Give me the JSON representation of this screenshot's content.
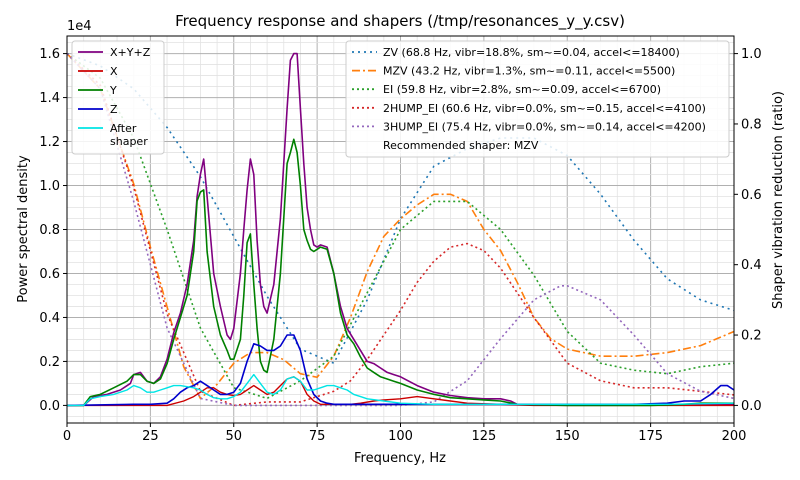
{
  "chart_data": {
    "type": "line",
    "title": "Frequency response and shapers (/tmp/resonances_y_y.csv)",
    "xlabel": "Frequency, Hz",
    "ylabel_left": "Power spectral density",
    "ylabel_right": "Shaper vibration reduction (ratio)",
    "xlim": [
      0,
      200
    ],
    "ylim_left": [
      -0.08,
      1.68
    ],
    "ylim_right": [
      -0.05,
      1.05
    ],
    "left_scale_label": "1e4",
    "xticks": [
      0,
      25,
      50,
      75,
      100,
      125,
      150,
      175,
      200
    ],
    "yticks_left": [
      0.0,
      0.2,
      0.4,
      0.6,
      0.8,
      1.0,
      1.2,
      1.4,
      1.6
    ],
    "yticks_right": [
      0.0,
      0.2,
      0.4,
      0.6,
      0.8,
      1.0
    ],
    "grid": true,
    "legend_left": "top-left",
    "legend_right": "top-right",
    "psd_series": [
      {
        "name": "X+Y+Z",
        "color": "#800080",
        "width": 1.6,
        "x": [
          0,
          5,
          8,
          12,
          16,
          19,
          20,
          22,
          24,
          26,
          28,
          30,
          32,
          34,
          36,
          38,
          39,
          40,
          41,
          42,
          44,
          46,
          48,
          49,
          50,
          52,
          53,
          54,
          55,
          56,
          57,
          58,
          59,
          60,
          62,
          64,
          66,
          67,
          68,
          69,
          70,
          71,
          72,
          73,
          74,
          75,
          76,
          78,
          80,
          82,
          84,
          86,
          88,
          90,
          92,
          94,
          96,
          98,
          100,
          105,
          110,
          115,
          120,
          125,
          130,
          133,
          135,
          150,
          175,
          200
        ],
        "y": [
          0.0,
          0.0,
          0.04,
          0.05,
          0.07,
          0.1,
          0.14,
          0.15,
          0.11,
          0.1,
          0.13,
          0.21,
          0.33,
          0.42,
          0.55,
          0.75,
          0.95,
          1.05,
          1.12,
          0.95,
          0.6,
          0.45,
          0.32,
          0.3,
          0.35,
          0.6,
          0.8,
          0.98,
          1.12,
          1.05,
          0.75,
          0.55,
          0.45,
          0.42,
          0.55,
          0.85,
          1.35,
          1.57,
          1.6,
          1.6,
          1.35,
          1.1,
          0.9,
          0.8,
          0.73,
          0.72,
          0.73,
          0.72,
          0.6,
          0.45,
          0.35,
          0.3,
          0.25,
          0.2,
          0.19,
          0.17,
          0.15,
          0.14,
          0.13,
          0.09,
          0.06,
          0.045,
          0.035,
          0.03,
          0.03,
          0.02,
          0.005,
          0.005,
          0.005,
          0.005
        ]
      },
      {
        "name": "X",
        "color": "#cc0000",
        "width": 1.4,
        "x": [
          0,
          30,
          35,
          38,
          40,
          42,
          44,
          46,
          48,
          50,
          52,
          54,
          56,
          58,
          60,
          62,
          64,
          66,
          68,
          70,
          72,
          74,
          76,
          80,
          85,
          88,
          92,
          95,
          100,
          105,
          110,
          115,
          120,
          130,
          140,
          160,
          180,
          200
        ],
        "y": [
          0.0,
          0.0,
          0.02,
          0.04,
          0.06,
          0.08,
          0.08,
          0.06,
          0.05,
          0.045,
          0.05,
          0.07,
          0.09,
          0.07,
          0.05,
          0.06,
          0.09,
          0.12,
          0.13,
          0.11,
          0.05,
          0.02,
          0.005,
          0.005,
          0.005,
          0.01,
          0.02,
          0.025,
          0.03,
          0.04,
          0.03,
          0.02,
          0.01,
          0.005,
          0.0,
          0.0,
          0.0,
          0.0
        ]
      },
      {
        "name": "Y",
        "color": "#008000",
        "width": 1.6,
        "x": [
          0,
          5,
          7,
          10,
          14,
          18,
          20,
          22,
          24,
          26,
          28,
          30,
          32,
          34,
          36,
          38,
          39,
          40,
          41,
          42,
          44,
          46,
          48,
          49,
          50,
          52,
          53,
          54,
          55,
          56,
          57,
          58,
          59,
          60,
          62,
          64,
          66,
          67,
          68,
          69,
          70,
          71,
          72,
          73,
          74,
          75,
          76,
          78,
          80,
          82,
          84,
          86,
          88,
          90,
          92,
          94,
          96,
          98,
          100,
          105,
          110,
          115,
          120,
          125,
          130,
          135,
          150,
          175,
          185,
          190,
          200
        ],
        "y": [
          0.0,
          0.0,
          0.04,
          0.05,
          0.08,
          0.11,
          0.14,
          0.14,
          0.11,
          0.1,
          0.12,
          0.19,
          0.3,
          0.4,
          0.5,
          0.7,
          0.93,
          0.97,
          0.98,
          0.7,
          0.45,
          0.32,
          0.25,
          0.21,
          0.21,
          0.3,
          0.5,
          0.74,
          0.78,
          0.55,
          0.35,
          0.2,
          0.16,
          0.15,
          0.3,
          0.6,
          1.1,
          1.15,
          1.21,
          1.15,
          1.0,
          0.8,
          0.75,
          0.71,
          0.7,
          0.71,
          0.72,
          0.71,
          0.6,
          0.42,
          0.32,
          0.28,
          0.22,
          0.17,
          0.15,
          0.13,
          0.12,
          0.11,
          0.1,
          0.07,
          0.05,
          0.035,
          0.03,
          0.025,
          0.02,
          0.005,
          0.0,
          0.0,
          0.005,
          0.01,
          0.01
        ]
      },
      {
        "name": "Z",
        "color": "#0000cc",
        "width": 1.6,
        "x": [
          0,
          20,
          25,
          30,
          32,
          34,
          36,
          38,
          40,
          42,
          44,
          46,
          48,
          50,
          52,
          54,
          56,
          58,
          60,
          62,
          64,
          66,
          68,
          70,
          72,
          74,
          76,
          78,
          80,
          100,
          130,
          150,
          170,
          180,
          185,
          190,
          193,
          196,
          198,
          200
        ],
        "y": [
          0.0,
          0.005,
          0.005,
          0.01,
          0.03,
          0.06,
          0.08,
          0.09,
          0.11,
          0.09,
          0.07,
          0.05,
          0.05,
          0.06,
          0.1,
          0.2,
          0.28,
          0.27,
          0.25,
          0.25,
          0.27,
          0.32,
          0.32,
          0.25,
          0.12,
          0.05,
          0.02,
          0.01,
          0.005,
          0.005,
          0.005,
          0.005,
          0.005,
          0.01,
          0.02,
          0.02,
          0.05,
          0.09,
          0.09,
          0.07
        ]
      },
      {
        "name": "After\nshaper",
        "color": "#00e5e5",
        "width": 1.4,
        "x": [
          0,
          5,
          7,
          10,
          14,
          18,
          20,
          22,
          24,
          26,
          28,
          30,
          32,
          34,
          36,
          38,
          40,
          42,
          44,
          46,
          48,
          50,
          52,
          54,
          56,
          58,
          60,
          62,
          64,
          66,
          68,
          70,
          72,
          74,
          76,
          78,
          80,
          82,
          84,
          86,
          88,
          90,
          95,
          100,
          110,
          130,
          150,
          180,
          200
        ],
        "y": [
          0.0,
          0.0,
          0.03,
          0.04,
          0.05,
          0.07,
          0.09,
          0.08,
          0.06,
          0.06,
          0.07,
          0.08,
          0.09,
          0.09,
          0.085,
          0.08,
          0.07,
          0.05,
          0.035,
          0.03,
          0.03,
          0.04,
          0.06,
          0.1,
          0.14,
          0.1,
          0.06,
          0.05,
          0.07,
          0.12,
          0.13,
          0.11,
          0.07,
          0.07,
          0.08,
          0.09,
          0.09,
          0.08,
          0.07,
          0.05,
          0.04,
          0.03,
          0.02,
          0.01,
          0.005,
          0.005,
          0.005,
          0.005,
          0.01
        ]
      }
    ],
    "shaper_series": [
      {
        "name": "ZV (68.8 Hz, vibr=18.8%, sm~=0.04, accel<=18400)",
        "color": "#1f77b4",
        "dash": "2,4",
        "x": [
          0,
          10,
          20,
          30,
          40,
          50,
          60,
          70,
          80,
          90,
          100,
          110,
          120,
          130,
          140,
          150,
          160,
          170,
          180,
          190,
          200
        ],
        "y": [
          1.0,
          0.965,
          0.9,
          0.79,
          0.65,
          0.48,
          0.31,
          0.16,
          0.12,
          0.3,
          0.53,
          0.68,
          0.73,
          0.76,
          0.76,
          0.71,
          0.6,
          0.47,
          0.36,
          0.3,
          0.27
        ]
      },
      {
        "name": "MZV (43.2 Hz, vibr=1.3%, sm~=0.11, accel<=5500)",
        "color": "#ff7f0e",
        "dash": "8,3,2,3",
        "x": [
          0,
          10,
          20,
          25,
          30,
          35,
          40,
          45,
          50,
          55,
          60,
          65,
          70,
          75,
          80,
          85,
          90,
          95,
          100,
          105,
          110,
          115,
          120,
          125,
          130,
          135,
          140,
          145,
          150,
          155,
          160,
          170,
          180,
          190,
          200
        ],
        "y": [
          1.0,
          0.9,
          0.63,
          0.45,
          0.28,
          0.11,
          0.02,
          0.06,
          0.12,
          0.15,
          0.15,
          0.13,
          0.09,
          0.08,
          0.14,
          0.25,
          0.38,
          0.48,
          0.53,
          0.57,
          0.6,
          0.6,
          0.58,
          0.5,
          0.44,
          0.35,
          0.25,
          0.19,
          0.16,
          0.15,
          0.14,
          0.14,
          0.15,
          0.17,
          0.21
        ]
      },
      {
        "name": "EI (59.8 Hz, vibr=2.8%, sm~=0.09, accel<=6700)",
        "color": "#2ca02c",
        "dash": "2,3",
        "x": [
          0,
          10,
          20,
          30,
          40,
          50,
          60,
          70,
          80,
          90,
          100,
          110,
          120,
          130,
          140,
          150,
          160,
          170,
          180,
          190,
          200
        ],
        "y": [
          1.0,
          0.93,
          0.76,
          0.5,
          0.22,
          0.05,
          0.02,
          0.07,
          0.14,
          0.32,
          0.5,
          0.58,
          0.58,
          0.5,
          0.37,
          0.21,
          0.12,
          0.1,
          0.09,
          0.11,
          0.12
        ]
      },
      {
        "name": "2HUMP_EI (60.6 Hz, vibr=0.0%, sm~=0.15, accel<=4100)",
        "color": "#d62728",
        "dash": "2,3",
        "x": [
          0,
          10,
          20,
          30,
          40,
          50,
          60,
          70,
          80,
          85,
          90,
          95,
          100,
          105,
          110,
          115,
          120,
          125,
          130,
          140,
          150,
          160,
          170,
          180,
          190,
          200
        ],
        "y": [
          1.0,
          0.91,
          0.62,
          0.26,
          0.04,
          0.0,
          0.01,
          0.01,
          0.04,
          0.07,
          0.13,
          0.2,
          0.27,
          0.35,
          0.41,
          0.45,
          0.46,
          0.44,
          0.39,
          0.25,
          0.12,
          0.07,
          0.05,
          0.05,
          0.04,
          0.03
        ]
      },
      {
        "name": "3HUMP_EI (75.4 Hz, vibr=0.0%, sm~=0.14, accel<=4200)",
        "color": "#9467bd",
        "dash": "2,3",
        "x": [
          0,
          10,
          20,
          30,
          40,
          50,
          60,
          70,
          80,
          90,
          100,
          110,
          120,
          130,
          140,
          148,
          150,
          160,
          170,
          180,
          190,
          200
        ],
        "y": [
          1.0,
          0.9,
          0.58,
          0.22,
          0.02,
          0.0,
          0.0,
          0.0,
          0.0,
          0.0,
          0.0,
          0.01,
          0.07,
          0.19,
          0.3,
          0.34,
          0.34,
          0.3,
          0.2,
          0.09,
          0.04,
          0.02
        ]
      }
    ],
    "recommendation": "Recommended shaper: MZV"
  }
}
